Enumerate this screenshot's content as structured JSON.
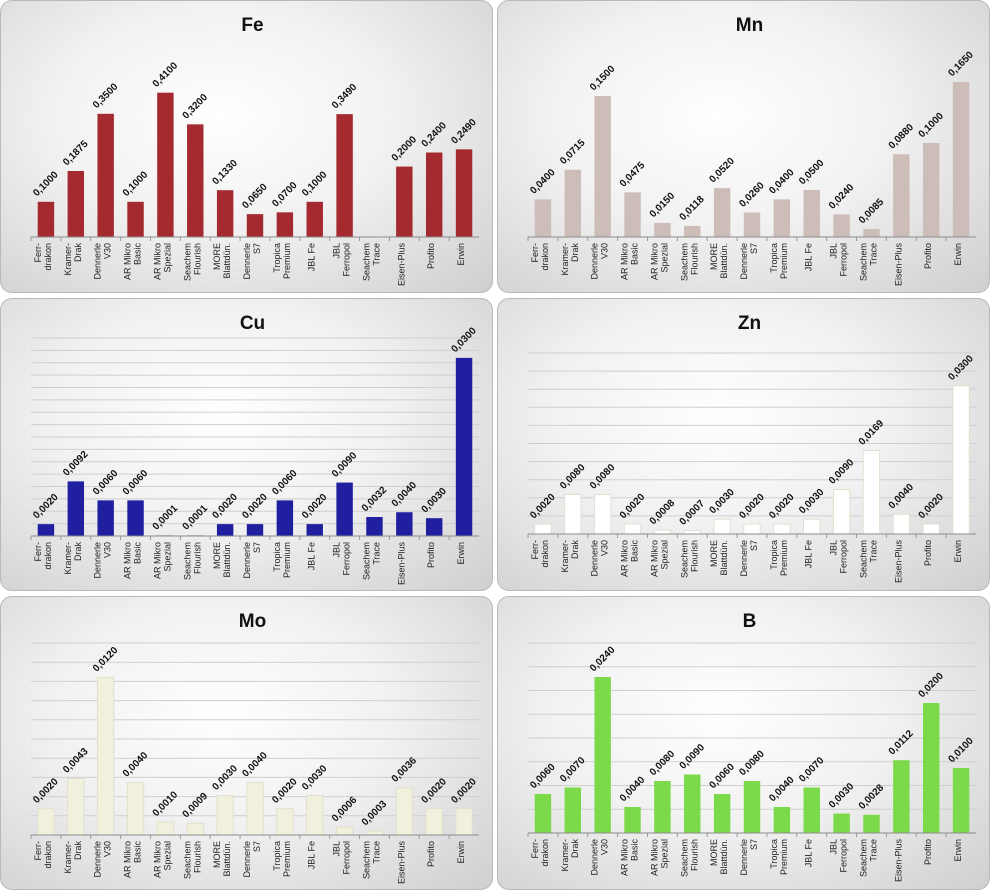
{
  "chart_data": [
    {
      "type": "bar",
      "title": "Fe",
      "color": "#a52a2f",
      "categories": [
        [
          "Ferr-",
          "drakon"
        ],
        [
          "Kramer-",
          "Drak"
        ],
        [
          "Dennerle",
          "V30"
        ],
        [
          "AR Mikro",
          "Basic"
        ],
        [
          "AR Mikro",
          "Spezial"
        ],
        [
          "Seachem",
          "Flourish"
        ],
        [
          "MORE",
          "Blattdün."
        ],
        [
          "Dennerle",
          "S7"
        ],
        [
          "Tropica",
          "Premium"
        ],
        [
          "JBL Fe"
        ],
        [
          "JBL",
          "Ferropol"
        ],
        [
          "Seachem",
          "Trace"
        ],
        [
          "Eisen-Plus"
        ],
        [
          "Profito"
        ],
        [
          "Erwin"
        ]
      ],
      "values": [
        0.1,
        0.1875,
        0.35,
        0.1,
        0.41,
        0.32,
        0.133,
        0.065,
        0.07,
        0.1,
        0.349,
        null,
        0.2,
        0.24,
        0.249
      ],
      "labels": [
        "0,1000",
        "0,1875",
        "0,3500",
        "0,1000",
        "0,4100",
        "0,3200",
        "0,1330",
        "0,0650",
        "0,0700",
        "0,1000",
        "0,3490",
        "",
        "0,2000",
        "0,2400",
        "0,2490"
      ],
      "ylim": [
        0,
        0.5
      ]
    },
    {
      "type": "bar",
      "title": "Mn",
      "color": "#cdbdb9",
      "categories": [
        [
          "Ferr-",
          "drakon"
        ],
        [
          "Kramer-",
          "Drak"
        ],
        [
          "Dennerle",
          "V30"
        ],
        [
          "AR Mikro",
          "Basic"
        ],
        [
          "AR Mikro",
          "Spezial"
        ],
        [
          "Seachem",
          "Flourish"
        ],
        [
          "MORE",
          "Blattdün."
        ],
        [
          "Dennerle",
          "S7"
        ],
        [
          "Tropica",
          "Premium"
        ],
        [
          "JBL Fe"
        ],
        [
          "JBL",
          "Ferropol"
        ],
        [
          "Seachem",
          "Trace"
        ],
        [
          "Eisen-Plus"
        ],
        [
          "Profito"
        ],
        [
          "Erwin"
        ]
      ],
      "values": [
        0.04,
        0.0715,
        0.15,
        0.0475,
        0.015,
        0.0118,
        0.052,
        0.026,
        0.04,
        0.05,
        0.024,
        0.0085,
        0.088,
        0.1,
        0.165
      ],
      "labels": [
        "0,0400",
        "0,0715",
        "0,1500",
        "0,0475",
        "0,0150",
        "0,0118",
        "0,0520",
        "0,0260",
        "0,0400",
        "0,0500",
        "0,0240",
        "0,0085",
        "0,0880",
        "0,1000",
        "0,1650"
      ],
      "ylim": [
        0,
        0.2
      ]
    },
    {
      "type": "bar",
      "title": "Cu",
      "color": "#1f1fa0",
      "categories": [
        [
          "Ferr-",
          "drakon"
        ],
        [
          "Kramer-",
          "Drak"
        ],
        [
          "Dennerle",
          "V30"
        ],
        [
          "AR Mikro",
          "Basic"
        ],
        [
          "AR Mikro",
          "Spezial"
        ],
        [
          "Seachem",
          "Flourish"
        ],
        [
          "MORE",
          "Blattdün."
        ],
        [
          "Dennerle",
          "S7"
        ],
        [
          "Tropica",
          "Premium"
        ],
        [
          "JBL Fe"
        ],
        [
          "JBL",
          "Ferropol"
        ],
        [
          "Seachem",
          "Trace"
        ],
        [
          "Eisen-Plus"
        ],
        [
          "Profito"
        ],
        [
          "Erwin"
        ]
      ],
      "values": [
        0.002,
        0.0092,
        0.006,
        0.006,
        0.0001,
        0.0001,
        0.002,
        0.002,
        0.006,
        0.002,
        0.009,
        0.0032,
        0.004,
        0.003,
        0.03
      ],
      "labels": [
        "0,0020",
        "0,0092",
        "0,0060",
        "0,0060",
        "0,0001",
        "0,0001",
        "0,0020",
        "0,0020",
        "0,0060",
        "0,0020",
        "0,0090",
        "0,0032",
        "0,0040",
        "0,0030",
        "0,0300"
      ],
      "ylim": [
        0,
        0.032
      ]
    },
    {
      "type": "bar",
      "title": "Zn",
      "color": "#ffffff",
      "categories": [
        [
          "Ferr-",
          "drakon"
        ],
        [
          "Kramer-",
          "Drak"
        ],
        [
          "Dennerle",
          "V30"
        ],
        [
          "AR Mikro",
          "Basic"
        ],
        [
          "AR Mikro",
          "Spezial"
        ],
        [
          "Seachem",
          "Flourish"
        ],
        [
          "MORE",
          "Blattdün."
        ],
        [
          "Dennerle",
          "S7"
        ],
        [
          "Tropica",
          "Premium"
        ],
        [
          "JBL Fe"
        ],
        [
          "JBL",
          "Ferropol"
        ],
        [
          "Seachem",
          "Trace"
        ],
        [
          "Eisen-Plus"
        ],
        [
          "Profito"
        ],
        [
          "Erwin"
        ]
      ],
      "values": [
        0.002,
        0.008,
        0.008,
        0.002,
        0.0008,
        0.0007,
        0.003,
        0.002,
        0.002,
        0.003,
        0.009,
        0.0169,
        0.004,
        0.002,
        0.03
      ],
      "labels": [
        "0,0020",
        "0,0080",
        "0,0080",
        "0,0020",
        "0,0008",
        "0,0007",
        "0,0030",
        "0,0020",
        "0,0020",
        "0,0030",
        "0,0090",
        "0,0169",
        "0,0040",
        "0,0020",
        "0,0300"
      ],
      "ylim": [
        0,
        0.035
      ]
    },
    {
      "type": "bar",
      "title": "Mo",
      "color": "#f0f0dc",
      "categories": [
        [
          "Ferr-",
          "drakon"
        ],
        [
          "Kramer-",
          "Drak"
        ],
        [
          "Dennerle",
          "V30"
        ],
        [
          "AR Mikro",
          "Basic"
        ],
        [
          "AR Mikro",
          "Spezial"
        ],
        [
          "Seachem",
          "Flourish"
        ],
        [
          "MORE",
          "Blattdün."
        ],
        [
          "Dennerle",
          "S7"
        ],
        [
          "Tropica",
          "Premium"
        ],
        [
          "JBL Fe"
        ],
        [
          "JBL",
          "Ferropol"
        ],
        [
          "Seachem",
          "Trace"
        ],
        [
          "Eisen-Plus"
        ],
        [
          "Profito"
        ],
        [
          "Erwin"
        ]
      ],
      "values": [
        0.002,
        0.0043,
        0.012,
        0.004,
        0.001,
        0.0009,
        0.003,
        0.004,
        0.002,
        0.003,
        0.0006,
        0.0003,
        0.0036,
        0.002,
        0.002
      ],
      "labels": [
        "0,0020",
        "0,0043",
        "0,0120",
        "0,0040",
        "0,0010",
        "0,0009",
        "0,0030",
        "0,0040",
        "0,0020",
        "0,0030",
        "0,0006",
        "0,0003",
        "0,0036",
        "0,0020",
        "0,0020"
      ],
      "ylim": [
        0,
        0.014
      ]
    },
    {
      "type": "bar",
      "title": "B",
      "color": "#7cd94a",
      "categories": [
        [
          "Ferr-",
          "drakon"
        ],
        [
          "Kramer-",
          "Drak"
        ],
        [
          "Dennerle",
          "V30"
        ],
        [
          "AR Mikro",
          "Basic"
        ],
        [
          "AR Mikro",
          "Spezial"
        ],
        [
          "Seachem",
          "Flourish"
        ],
        [
          "MORE",
          "Blattdün."
        ],
        [
          "Dennerle",
          "S7"
        ],
        [
          "Tropica",
          "Premium"
        ],
        [
          "JBL Fe"
        ],
        [
          "JBL",
          "Ferropol"
        ],
        [
          "Seachem",
          "Trace"
        ],
        [
          "Eisen-Plus"
        ],
        [
          "Profito"
        ],
        [
          "Erwin"
        ]
      ],
      "values": [
        0.006,
        0.007,
        0.024,
        0.004,
        0.008,
        0.009,
        0.006,
        0.008,
        0.004,
        0.007,
        0.003,
        0.0028,
        0.0112,
        0.02,
        0.01
      ],
      "labels": [
        "0,0060",
        "0,0070",
        "0,0240",
        "0,0040",
        "0,0080",
        "0,0090",
        "0,0060",
        "0,0080",
        "0,0040",
        "0,0070",
        "0,0030",
        "0,0028",
        "0,0112",
        "0,0200",
        "0,0100"
      ],
      "ylim": [
        0,
        0.028
      ]
    }
  ]
}
